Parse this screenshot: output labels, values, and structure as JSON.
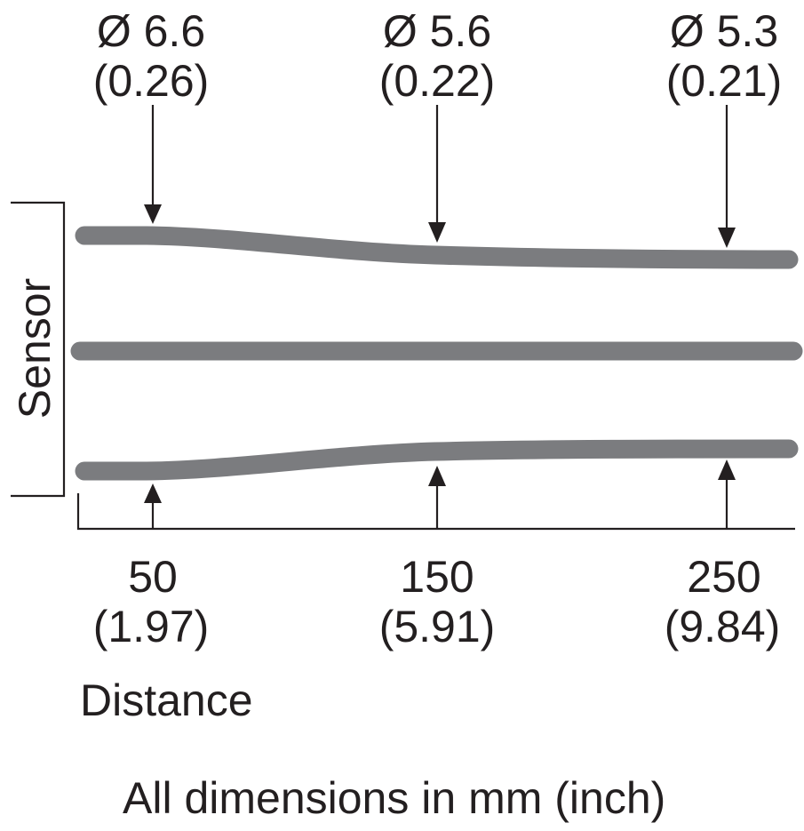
{
  "diameters": [
    {
      "mm": "Ø 6.6",
      "inch": "(0.26)"
    },
    {
      "mm": "Ø 5.6",
      "inch": "(0.22)"
    },
    {
      "mm": "Ø 5.3",
      "inch": "(0.21)"
    }
  ],
  "distances": [
    {
      "mm": "50",
      "inch": "(1.97)"
    },
    {
      "mm": "150",
      "inch": "(5.91)"
    },
    {
      "mm": "250",
      "inch": "(9.84)"
    }
  ],
  "sensor_label": "Sensor",
  "distance_label": "Distance",
  "units_note": "All dimensions in mm (inch)",
  "colors": {
    "beam": "#7b7c7f",
    "lines": "#231f20"
  }
}
